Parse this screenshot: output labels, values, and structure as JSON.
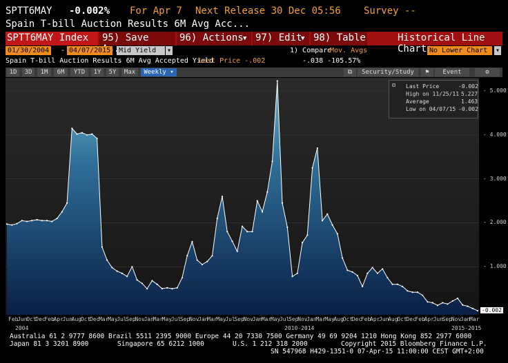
{
  "header": {
    "ticker": "SPTT6MAY",
    "change": "-0.002%",
    "for_label": "For Apr 7",
    "next_release": "Next Release 30 Dec 05:56",
    "survey": "Survey --",
    "description": "Spain T-bill Auction Results 6M Avg Acc..."
  },
  "toolbar": {
    "index": "SPTT6MAY Index",
    "save": "95) Save As...",
    "actions": "96) Actions",
    "edit": "97) Edit",
    "table": "98) Table",
    "chart_title": "Historical Line Chart"
  },
  "controls": {
    "start_date": "01/30/2004",
    "end_date": "04/07/2015",
    "field": "Mid Yield",
    "compare": "1) Compare",
    "mov_avgs": "Mov. Avgs",
    "lower_chart": "No Lower Chart"
  },
  "info": {
    "series_desc": "Spain T-bill Auction Results 6M Avg Accepted Yield",
    "last_price": "Last Price -.002",
    "change": "-.038 -105.57%"
  },
  "tabs": [
    "1D",
    "3D",
    "1M",
    "6M",
    "YTD",
    "1Y",
    "5Y",
    "Max",
    "Weekly"
  ],
  "tabs_right": {
    "security": "Security/Study",
    "event": "Event"
  },
  "legend": {
    "last_price": "Last Price",
    "last_val": "-0.002",
    "high": "High on 11/25/11",
    "high_val": "5.227",
    "average": "Average",
    "avg_val": "1.463",
    "low": "Low on 04/07/15",
    "low_val": "-0.002"
  },
  "chart_data": {
    "type": "area",
    "y_ticks": [
      "5.000",
      "4.000",
      "3.000",
      "2.000",
      "1.000"
    ],
    "last_value_label": "-0.002",
    "ylim": [
      0,
      5.3
    ],
    "x_ticks": [
      "Feb",
      "Jun",
      "Oct",
      "Dec",
      "Feb",
      "Apr",
      "Jun",
      "Aug",
      "Oct",
      "Dec",
      "Mar",
      "May",
      "Jul",
      "Sep",
      "Nov",
      "Jan",
      "Mar",
      "May",
      "Jul",
      "Sep",
      "Nov",
      "Jan",
      "Mar",
      "May",
      "Jul",
      "Sep",
      "Nov",
      "Jan",
      "Mar",
      "May",
      "Jul",
      "Sep",
      "Nov",
      "Jan",
      "Mar",
      "May",
      "Aug",
      "Oct",
      "Dec",
      "Feb",
      "Apr",
      "Jun",
      "Aug",
      "Oct",
      "Dec",
      "Feb",
      "Apr",
      "Jun",
      "Sep",
      "Nov",
      "Jan",
      "Mar"
    ],
    "era_labels": [
      "2004",
      "2010-2014",
      "2015-2015"
    ],
    "values": [
      1.97,
      1.95,
      1.98,
      2.05,
      2.03,
      2.05,
      2.07,
      2.05,
      2.05,
      2.03,
      2.1,
      2.25,
      2.45,
      4.15,
      4.02,
      4.05,
      4.0,
      4.02,
      3.92,
      1.45,
      1.15,
      0.98,
      0.9,
      0.85,
      0.78,
      1.0,
      0.7,
      0.62,
      0.5,
      0.68,
      0.6,
      0.5,
      0.52,
      0.5,
      0.52,
      0.75,
      1.25,
      1.57,
      1.15,
      1.05,
      1.12,
      1.25,
      2.1,
      2.6,
      1.8,
      1.58,
      1.35,
      1.92,
      1.8,
      1.8,
      2.5,
      2.25,
      2.7,
      3.4,
      5.23,
      2.45,
      1.9,
      0.78,
      0.85,
      1.55,
      1.72,
      3.25,
      3.7,
      2.05,
      2.2,
      1.95,
      1.75,
      1.2,
      0.92,
      0.88,
      0.8,
      0.55,
      0.85,
      0.98,
      0.85,
      0.95,
      0.75,
      0.6,
      0.6,
      0.55,
      0.45,
      0.42,
      0.42,
      0.35,
      0.2,
      0.18,
      0.12,
      0.18,
      0.15,
      0.22,
      0.28,
      0.13,
      0.1,
      0.05,
      -0.002
    ]
  },
  "footer": {
    "line1": "Australia 61 2 9777 8600 Brazil 5511 2395 9000 Europe 44 20 7330 7500 Germany 49 69 9204 1210 Hong Kong 852 2977 6000",
    "line2a": "Japan 81 3 3201 8900",
    "line2b": "Singapore 65 6212 1000",
    "line2c": "U.S. 1 212 318 2000",
    "line2d": "Copyright 2015 Bloomberg Finance L.P.",
    "line3": "SN 547968 H429-1351-0 07-Apr-15 11:00:00 CEST GMT+2:00"
  }
}
